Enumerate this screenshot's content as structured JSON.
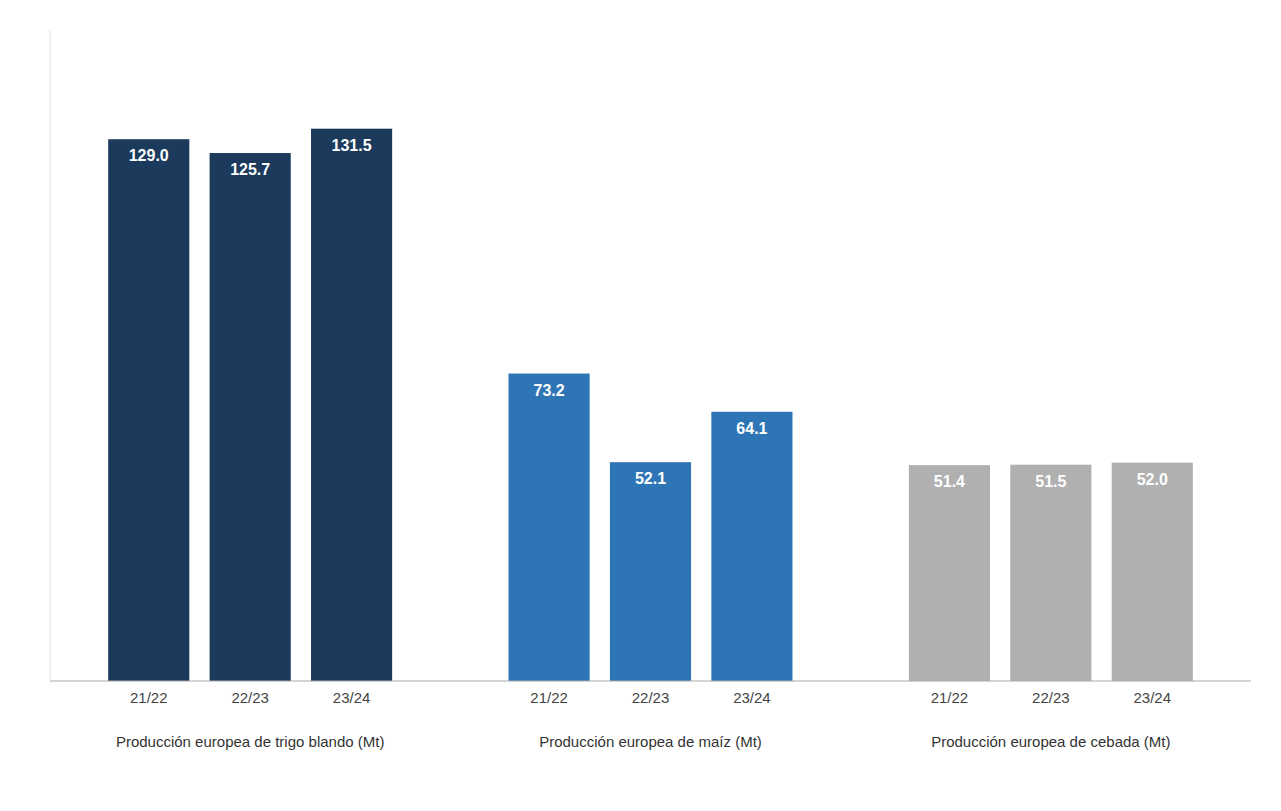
{
  "chart_data": {
    "type": "bar",
    "categories": [
      "21/22",
      "22/23",
      "23/24"
    ],
    "series": [
      {
        "name": "Producción europea de trigo blando (Mt)",
        "color": "#1b3a5c",
        "values": [
          129.0,
          125.7,
          131.5
        ],
        "value_labels": [
          "129.0",
          "125.7",
          "131.5"
        ]
      },
      {
        "name": "Producción europea de maíz (Mt)",
        "color": "#2e75b6",
        "values": [
          73.2,
          52.1,
          64.1
        ],
        "value_labels": [
          "73.2",
          "52.1",
          "64.1"
        ]
      },
      {
        "name": "Producción europea de cebada (Mt)",
        "color": "#b0b0b0",
        "values": [
          51.4,
          51.5,
          52.0
        ],
        "value_labels": [
          "51.4",
          "51.5",
          "52.0"
        ]
      }
    ],
    "ylim": [
      0,
      155
    ],
    "data_labels": true,
    "tick_labels": "x",
    "grid": false
  }
}
